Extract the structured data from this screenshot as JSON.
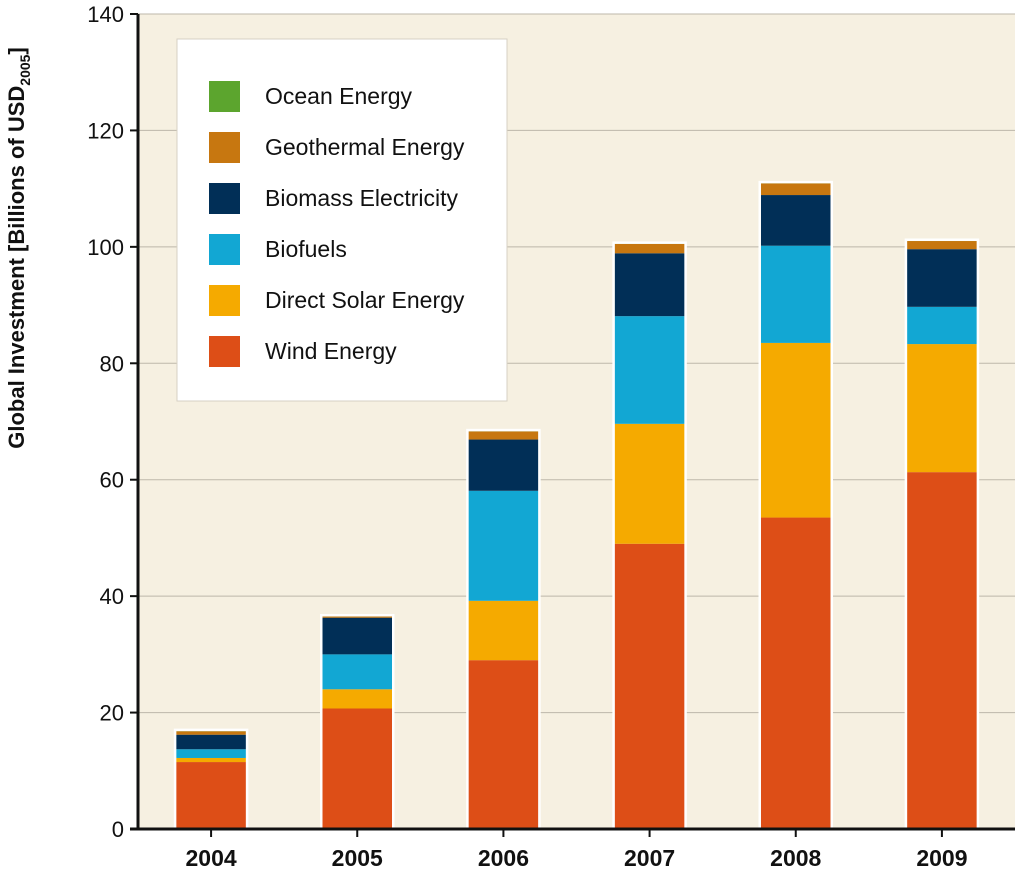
{
  "chart_data": {
    "type": "bar",
    "stacked": true,
    "title": "",
    "xlabel": "",
    "ylabel": {
      "main": "Global Investment  [Billions of USD",
      "subscript": "2005",
      "close": "]"
    },
    "ylim": [
      0,
      140
    ],
    "yticks": [
      0,
      20,
      40,
      60,
      80,
      100,
      120,
      140
    ],
    "grid": true,
    "legend_position": "top-left",
    "categories": [
      "2004",
      "2005",
      "2006",
      "2007",
      "2008",
      "2009"
    ],
    "series": [
      {
        "name": "Wind Energy",
        "color": "#dd4e17",
        "values": [
          11.5,
          20.7,
          29.0,
          49.0,
          53.5,
          61.3
        ]
      },
      {
        "name": "Direct Solar Energy",
        "color": "#f5aa00",
        "values": [
          0.7,
          3.3,
          10.2,
          20.6,
          30.0,
          22.0
        ]
      },
      {
        "name": "Biofuels",
        "color": "#12a7d3",
        "values": [
          1.5,
          6.0,
          18.9,
          18.5,
          16.7,
          6.4
        ]
      },
      {
        "name": "Biomass Electricity",
        "color": "#012f57",
        "values": [
          2.5,
          6.3,
          8.8,
          10.8,
          8.7,
          9.9
        ]
      },
      {
        "name": "Geothermal Energy",
        "color": "#c77710",
        "values": [
          0.6,
          0.2,
          1.4,
          1.6,
          2.0,
          1.4
        ]
      },
      {
        "name": "Ocean Energy",
        "color": "#5ca52e",
        "values": [
          0.05,
          0.05,
          0.05,
          0.05,
          0.05,
          0.05
        ]
      }
    ]
  }
}
